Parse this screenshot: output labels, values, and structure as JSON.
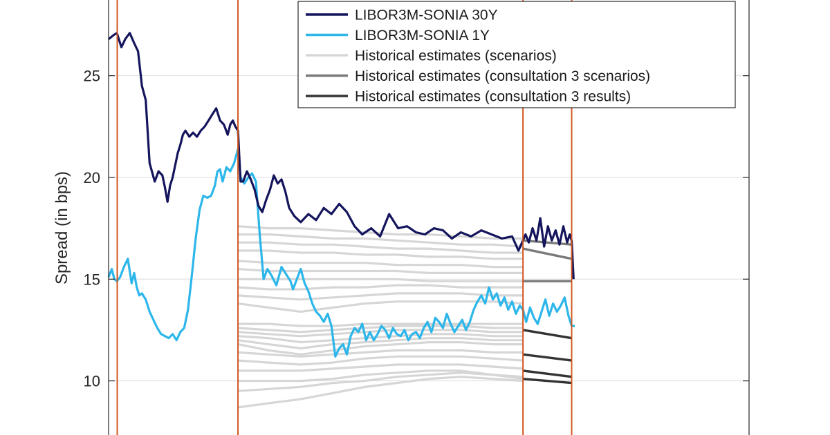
{
  "chart_data": {
    "type": "line",
    "title": "",
    "xlabel": "",
    "ylabel": "Spread (in bps)",
    "ylim": [
      7.0,
      29.4
    ],
    "yticks": [
      10,
      15,
      20,
      25
    ],
    "ytick_labels": [
      "10",
      "15",
      "20",
      "25"
    ],
    "xlim": [
      0,
      1000
    ],
    "grid": true,
    "legend_position": "top-right",
    "vertical_markers": [
      13.5,
      202,
      647,
      723
    ],
    "colors": {
      "libor30y": "#14155c",
      "libor1y": "#2cb6ea",
      "scenarios": "#d6d6d6",
      "consult_scen": "#7a7a7a",
      "consult_res": "#333333",
      "marker": "#d2571f",
      "axis": "#262626",
      "grid": "#dddddd"
    },
    "legend": [
      {
        "label": "LIBOR3M-SONIA 30Y",
        "color": "#14155c"
      },
      {
        "label": "LIBOR3M-SONIA 1Y",
        "color": "#2cb6ea"
      },
      {
        "label": "Historical estimates (scenarios)",
        "color": "#d6d6d6"
      },
      {
        "label": "Historical estimates (consultation 3 scenarios)",
        "color": "#7a7a7a"
      },
      {
        "label": "Historical estimates (consultation 3 results)",
        "color": "#333333"
      }
    ],
    "series_30y": {
      "x": [
        0,
        8,
        13,
        20,
        26,
        33,
        40,
        46,
        52,
        58,
        64,
        72,
        78,
        84,
        88,
        92,
        96,
        100,
        104,
        108,
        112,
        116,
        120,
        126,
        132,
        138,
        144,
        150,
        156,
        162,
        168,
        174,
        180,
        186,
        190,
        194,
        198,
        202,
        206,
        210,
        216,
        222,
        228,
        234,
        240,
        246,
        252,
        258,
        264,
        270,
        276,
        282,
        290,
        300,
        312,
        324,
        336,
        348,
        360,
        372,
        384,
        396,
        410,
        424,
        438,
        452,
        466,
        480,
        494,
        508,
        522,
        536,
        550,
        566,
        582,
        598,
        614,
        630,
        640,
        647,
        651,
        656,
        662,
        668,
        674,
        680,
        686,
        692,
        698,
        704,
        710,
        716,
        720,
        723,
        726
      ],
      "y": [
        26.8,
        27.0,
        27.1,
        26.4,
        26.8,
        27.1,
        26.6,
        26.2,
        24.5,
        23.8,
        20.7,
        19.8,
        20.3,
        20.1,
        19.5,
        18.8,
        19.6,
        20.0,
        20.6,
        21.2,
        21.6,
        22.1,
        22.3,
        22.0,
        22.2,
        22.0,
        22.3,
        22.5,
        22.8,
        23.1,
        23.4,
        22.8,
        22.6,
        22.1,
        22.6,
        22.8,
        22.5,
        22.3,
        19.8,
        19.8,
        20.3,
        19.9,
        19.4,
        18.6,
        18.3,
        18.9,
        19.4,
        20.1,
        19.7,
        19.9,
        19.3,
        18.5,
        18.1,
        17.8,
        18.2,
        17.9,
        18.5,
        18.2,
        18.7,
        18.3,
        17.6,
        17.2,
        17.5,
        17.1,
        18.2,
        17.5,
        17.6,
        17.3,
        17.2,
        17.5,
        17.4,
        17.0,
        17.3,
        17.1,
        17.4,
        17.2,
        17.0,
        17.1,
        16.4,
        16.9,
        17.2,
        16.8,
        17.5,
        16.9,
        18.0,
        16.6,
        17.6,
        16.9,
        17.4,
        16.7,
        17.6,
        16.8,
        17.2,
        16.9,
        15.0
      ]
    },
    "series_1y": {
      "x": [
        0,
        5,
        9,
        13,
        18,
        24,
        30,
        36,
        40,
        44,
        48,
        52,
        58,
        64,
        70,
        76,
        82,
        88,
        94,
        100,
        106,
        112,
        118,
        124,
        130,
        136,
        142,
        148,
        154,
        160,
        166,
        170,
        174,
        178,
        184,
        190,
        196,
        202,
        206,
        212,
        218,
        224,
        230,
        236,
        242,
        248,
        254,
        262,
        270,
        276,
        280,
        284,
        288,
        294,
        300,
        306,
        312,
        318,
        324,
        330,
        336,
        342,
        348,
        354,
        360,
        366,
        372,
        378,
        384,
        390,
        396,
        402,
        408,
        414,
        420,
        426,
        432,
        438,
        444,
        450,
        456,
        462,
        468,
        474,
        480,
        486,
        492,
        498,
        504,
        510,
        516,
        522,
        528,
        534,
        540,
        546,
        552,
        558,
        564,
        570,
        576,
        582,
        588,
        594,
        600,
        606,
        612,
        618,
        624,
        630,
        636,
        642,
        647,
        652,
        658,
        664,
        670,
        676,
        682,
        688,
        694,
        700,
        706,
        712,
        718,
        723,
        728
      ],
      "y": [
        15.1,
        15.5,
        15.0,
        14.9,
        15.1,
        15.6,
        16.0,
        14.8,
        15.3,
        14.6,
        14.2,
        14.3,
        14.0,
        13.4,
        13.0,
        12.6,
        12.3,
        12.2,
        12.1,
        12.3,
        12.0,
        12.4,
        12.6,
        13.5,
        15.2,
        17.0,
        18.4,
        19.1,
        19.0,
        19.1,
        19.6,
        20.3,
        20.4,
        19.8,
        20.5,
        20.3,
        20.7,
        21.4,
        20.0,
        19.7,
        20.0,
        20.2,
        19.8,
        17.2,
        15.0,
        15.5,
        15.2,
        14.7,
        15.6,
        15.3,
        15.1,
        14.9,
        14.5,
        15.0,
        15.5,
        14.8,
        14.4,
        13.8,
        13.4,
        13.2,
        12.9,
        13.3,
        12.7,
        11.2,
        11.6,
        11.8,
        11.3,
        12.2,
        12.6,
        12.4,
        12.8,
        12.0,
        12.4,
        12.0,
        12.3,
        12.7,
        12.5,
        12.1,
        12.6,
        12.3,
        12.2,
        12.5,
        12.0,
        12.3,
        12.4,
        12.1,
        12.6,
        12.9,
        12.4,
        13.1,
        12.9,
        12.6,
        13.3,
        12.8,
        12.4,
        12.7,
        13.0,
        12.5,
        12.9,
        13.5,
        13.9,
        14.2,
        13.8,
        14.6,
        14.0,
        14.3,
        13.7,
        14.1,
        13.5,
        13.9,
        13.3,
        13.7,
        13.5,
        12.9,
        13.6,
        13.1,
        12.8,
        13.4,
        14.0,
        13.2,
        13.8,
        13.4,
        13.7,
        14.1,
        13.2,
        12.7,
        12.7
      ]
    },
    "scenario_paths": {
      "x": [
        202,
        250,
        300,
        350,
        400,
        450,
        500,
        550,
        600,
        647
      ],
      "y": [
        [
          17.6,
          17.5,
          17.5,
          17.4,
          17.3,
          17.2,
          17.2,
          17.1,
          17.0,
          17.0
        ],
        [
          17.2,
          17.2,
          17.1,
          17.0,
          17.0,
          16.9,
          16.8,
          16.7,
          16.7,
          16.6
        ],
        [
          16.8,
          16.8,
          16.7,
          16.7,
          16.6,
          16.5,
          16.5,
          16.4,
          16.3,
          16.3
        ],
        [
          16.4,
          16.4,
          16.3,
          16.3,
          16.2,
          16.2,
          16.1,
          16.1,
          16.0,
          16.0
        ],
        [
          15.9,
          15.8,
          15.8,
          15.8,
          15.8,
          15.7,
          15.7,
          15.7,
          15.6,
          15.6
        ],
        [
          15.5,
          15.4,
          15.4,
          15.4,
          15.4,
          15.4,
          15.3,
          15.3,
          15.3,
          15.3
        ],
        [
          15.0,
          15.0,
          15.0,
          15.0,
          15.0,
          15.0,
          14.9,
          14.9,
          14.9,
          14.9
        ],
        [
          14.6,
          14.5,
          14.5,
          14.6,
          14.6,
          14.7,
          14.7,
          14.6,
          14.6,
          14.6
        ],
        [
          14.2,
          14.1,
          14.0,
          14.1,
          14.2,
          14.3,
          14.3,
          14.3,
          14.2,
          14.2
        ],
        [
          13.8,
          13.6,
          13.4,
          13.6,
          13.8,
          13.9,
          13.9,
          13.9,
          13.9,
          13.8
        ],
        [
          12.8,
          12.8,
          12.7,
          12.7,
          12.8,
          12.8,
          12.8,
          12.8,
          12.8,
          12.8
        ],
        [
          12.6,
          12.5,
          12.4,
          12.5,
          12.6,
          12.7,
          12.7,
          12.7,
          12.6,
          12.6
        ],
        [
          12.4,
          12.3,
          12.2,
          12.3,
          12.4,
          12.5,
          12.5,
          12.5,
          12.4,
          12.4
        ],
        [
          12.2,
          12.1,
          11.9,
          12.0,
          12.1,
          12.2,
          12.3,
          12.3,
          12.2,
          12.2
        ],
        [
          12.0,
          11.8,
          11.6,
          11.8,
          11.9,
          12.0,
          12.1,
          12.1,
          12.0,
          12.0
        ],
        [
          11.8,
          11.5,
          11.3,
          11.5,
          11.7,
          11.8,
          11.9,
          11.9,
          11.8,
          11.8
        ],
        [
          11.4,
          11.3,
          11.2,
          11.3,
          11.4,
          11.5,
          11.5,
          11.5,
          11.4,
          11.4
        ],
        [
          11.0,
          10.9,
          10.8,
          10.9,
          11.1,
          11.2,
          11.2,
          11.2,
          11.1,
          11.0
        ],
        [
          10.5,
          10.5,
          10.5,
          10.6,
          10.7,
          10.8,
          10.8,
          10.8,
          10.7,
          10.6
        ],
        [
          10.0,
          10.0,
          10.0,
          10.1,
          10.3,
          10.4,
          10.5,
          10.5,
          10.3,
          10.2
        ],
        [
          9.5,
          9.6,
          9.7,
          9.9,
          10.0,
          10.2,
          10.3,
          10.4,
          10.3,
          10.1
        ],
        [
          8.7,
          8.9,
          9.1,
          9.4,
          9.7,
          9.9,
          10.1,
          10.2,
          10.1,
          10.0
        ]
      ]
    },
    "consult_scenario_paths": {
      "x": [
        647,
        723
      ],
      "y": [
        [
          16.9,
          16.7
        ],
        [
          16.5,
          16.0
        ],
        [
          14.9,
          14.9
        ]
      ]
    },
    "consult_result_paths": {
      "x": [
        647,
        723
      ],
      "y": [
        [
          12.5,
          12.1
        ],
        [
          11.3,
          11.0
        ],
        [
          10.5,
          10.2
        ],
        [
          10.1,
          9.9
        ]
      ]
    }
  }
}
